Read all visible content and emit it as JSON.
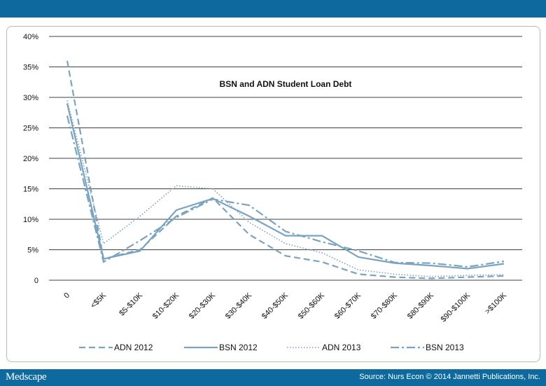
{
  "footer": {
    "brand": "Medscape",
    "source": "Source: Nurs Econ © 2014 Jannetti Publications, Inc."
  },
  "colors": {
    "bar": "#0e6a9e",
    "series": "#7aa3c0",
    "grid": "#000000"
  },
  "chart_data": {
    "type": "line",
    "title": "BSN and ADN Student Loan Debt",
    "xlabel": "",
    "ylabel": "",
    "ylim": [
      0,
      40
    ],
    "yticks": [
      "0",
      "5%",
      "10%",
      "15%",
      "20%",
      "25%",
      "30%",
      "35%",
      "40%"
    ],
    "grid": true,
    "legend_position": "bottom",
    "categories": [
      "0",
      "<$5K",
      "$5-$10K",
      "$10-$20K",
      "$20-$30K",
      "$30-$40K",
      "$40-$50K",
      "$50-$60K",
      "$60-$70K",
      "$70-$80K",
      "$80-$90K",
      "$90-$100K",
      ">$100K"
    ],
    "series": [
      {
        "name": "ADN 2012",
        "dash": "dashed",
        "values": [
          36,
          3.5,
          5,
          10.5,
          13.5,
          7.5,
          4,
          3,
          1,
          0.5,
          0.3,
          0.5,
          0.7
        ]
      },
      {
        "name": "BSN 2012",
        "dash": "solid",
        "values": [
          29,
          3.5,
          4.8,
          11.5,
          13.4,
          10.5,
          7.3,
          7.3,
          3.8,
          2.8,
          2.4,
          1.9,
          2.7
        ]
      },
      {
        "name": "ADN 2013",
        "dash": "dotted",
        "values": [
          29.5,
          6,
          10.5,
          15.5,
          15,
          9.5,
          6,
          4.5,
          1.7,
          1,
          0.6,
          0.8,
          0.9
        ]
      },
      {
        "name": "BSN 2013",
        "dash": "dashdot",
        "values": [
          27,
          3,
          6.5,
          10.3,
          13.3,
          12.3,
          8,
          6.3,
          4.8,
          2.9,
          2.8,
          2.2,
          3.1
        ]
      }
    ]
  }
}
